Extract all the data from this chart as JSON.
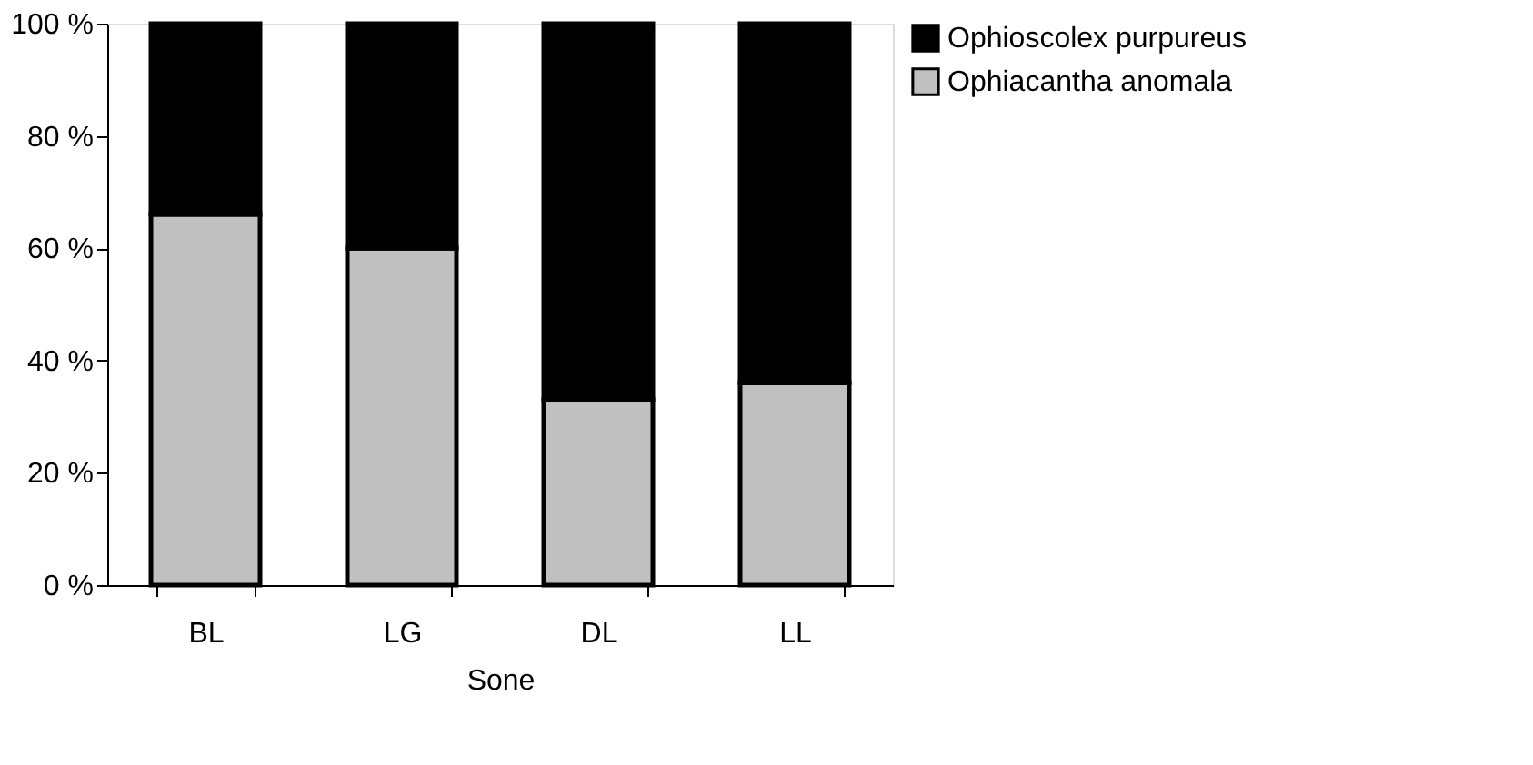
{
  "chart_data": {
    "type": "bar",
    "stacked": true,
    "xlabel": "Sone",
    "categories": [
      "BL",
      "LG",
      "DL",
      "LL"
    ],
    "series": [
      {
        "name": "Ophiacantha anomala",
        "color": "#c0c0c0",
        "values": [
          66,
          60,
          33,
          36
        ]
      },
      {
        "name": "Ophioscolex purpureus",
        "color": "#000000",
        "values": [
          34,
          40,
          67,
          64
        ]
      }
    ],
    "ylim": [
      0,
      100
    ],
    "yticks": [
      {
        "value": 0,
        "label": "0 %"
      },
      {
        "value": 20,
        "label": "20 %"
      },
      {
        "value": 40,
        "label": "40 %"
      },
      {
        "value": 60,
        "label": "60 %"
      },
      {
        "value": 80,
        "label": "80 %"
      },
      {
        "value": 100,
        "label": "100 %"
      }
    ],
    "grid": false,
    "legend": "right"
  }
}
